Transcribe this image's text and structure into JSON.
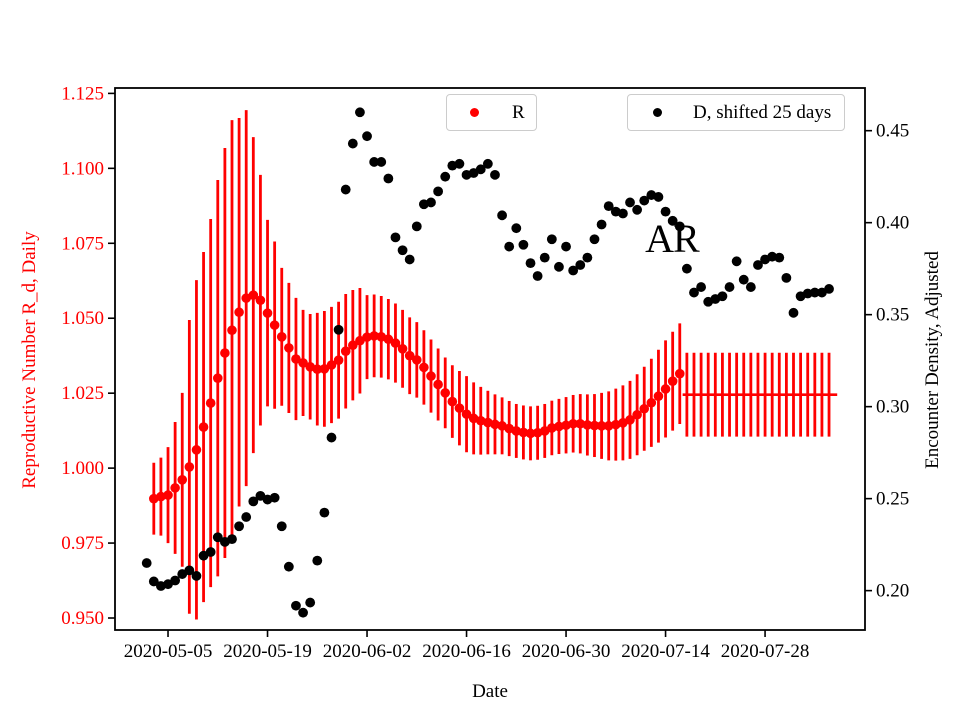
{
  "chart_data": {
    "type": "scatter",
    "xlabel": "Date",
    "ylabel_left": "Reproductive Number R_d, Daily",
    "ylabel_right": "Encounter Density, Adjusted",
    "axes": {
      "x_tick_labels": [
        "2020-05-05",
        "2020-05-19",
        "2020-06-02",
        "2020-06-16",
        "2020-06-30",
        "2020-07-14",
        "2020-07-28"
      ],
      "x_tick_offsets": [
        0,
        14,
        28,
        42,
        56,
        70,
        84
      ],
      "x_range_offsets": [
        -7.46,
        98.06
      ],
      "left_tick_labels": [
        "0.950",
        "0.975",
        "1.000",
        "1.025",
        "1.050",
        "1.075",
        "1.100",
        "1.125"
      ],
      "left_tick_values": [
        0.95,
        0.975,
        1.0,
        1.025,
        1.05,
        1.075,
        1.1,
        1.125
      ],
      "left_range": [
        0.946,
        1.1268
      ],
      "left_color": "#ff0000",
      "right_tick_labels": [
        "0.20",
        "0.25",
        "0.30",
        "0.35",
        "0.40",
        "0.45"
      ],
      "right_tick_values": [
        0.2,
        0.25,
        0.3,
        0.35,
        0.4,
        0.45
      ],
      "right_range": [
        0.1786,
        0.4732
      ],
      "right_color": "#000000",
      "grid": false
    },
    "series": [
      {
        "name": "R",
        "type": "scatter-errorbar",
        "axis": "left",
        "color": "#ff0000",
        "start_offset": -2,
        "values": [
          0.9898,
          0.9905,
          0.991,
          0.9934,
          0.9961,
          1.0004,
          1.0061,
          1.0137,
          1.0217,
          1.03,
          1.0384,
          1.046,
          1.052,
          1.0567,
          1.0577,
          1.056,
          1.0517,
          1.0477,
          1.0438,
          1.0401,
          1.0364,
          1.0351,
          1.0338,
          1.033,
          1.0331,
          1.0344,
          1.036,
          1.039,
          1.041,
          1.0425,
          1.0437,
          1.0441,
          1.0438,
          1.043,
          1.0417,
          1.0398,
          1.0375,
          1.0361,
          1.0336,
          1.0307,
          1.0279,
          1.0251,
          1.0222,
          1.02,
          1.018,
          1.0166,
          1.0158,
          1.0152,
          1.0146,
          1.0141,
          1.0132,
          1.0124,
          1.0119,
          1.0116,
          1.0118,
          1.0124,
          1.0134,
          1.0139,
          1.0143,
          1.0148,
          1.0148,
          1.0144,
          1.0142,
          1.0141,
          1.0141,
          1.0145,
          1.0151,
          1.0161,
          1.0178,
          1.0198,
          1.0218,
          1.024,
          1.0264,
          1.029,
          1.0315
        ],
        "err": [
          0.012,
          0.013,
          0.016,
          0.022,
          0.029,
          0.049,
          0.0566,
          0.0584,
          0.0614,
          0.0661,
          0.0684,
          0.0701,
          0.0648,
          0.0627,
          0.0527,
          0.0418,
          0.0311,
          0.0279,
          0.023,
          0.0217,
          0.0204,
          0.0177,
          0.0176,
          0.0188,
          0.0193,
          0.0194,
          0.0195,
          0.0191,
          0.0184,
          0.0176,
          0.014,
          0.0138,
          0.0136,
          0.0134,
          0.0132,
          0.013,
          0.0128,
          0.0126,
          0.0124,
          0.0122,
          0.012,
          0.0118,
          0.0121,
          0.0124,
          0.0127,
          0.012,
          0.0113,
          0.0106,
          0.01,
          0.0095,
          0.0092,
          0.009,
          0.009,
          0.009,
          0.009,
          0.009,
          0.0091,
          0.0092,
          0.0094,
          0.0096,
          0.0099,
          0.0102,
          0.0105,
          0.011,
          0.0115,
          0.012,
          0.0125,
          0.013,
          0.0135,
          0.014,
          0.0147,
          0.0155,
          0.0162,
          0.0165,
          0.0168
        ]
      },
      {
        "name": "R flat segment",
        "type": "line-errorbar",
        "axis": "left",
        "color": "#ff0000",
        "line_start_offset": 72.4,
        "line_end_offset": 94.15,
        "value": 1.0245,
        "bar_start_offset": 73,
        "bar_count": 21,
        "err": 0.014
      },
      {
        "name": "D, shifted 25 days",
        "type": "scatter",
        "axis": "right",
        "color": "#000000",
        "start_offset": -3,
        "values": [
          0.215,
          0.205,
          0.2025,
          0.2035,
          0.2055,
          0.209,
          0.211,
          0.208,
          0.219,
          0.221,
          0.229,
          0.2265,
          0.228,
          0.235,
          0.24,
          0.2485,
          0.2515,
          0.2495,
          0.2505,
          0.235,
          0.213,
          0.1918,
          0.188,
          0.1935,
          0.2163,
          0.2424,
          0.2832,
          0.3418,
          0.418,
          0.443,
          0.46,
          0.447,
          0.433,
          0.433,
          0.424,
          0.392,
          0.385,
          0.38,
          0.398,
          0.41,
          0.411,
          0.417,
          0.425,
          0.431,
          0.432,
          0.426,
          0.427,
          0.429,
          0.432,
          0.426,
          0.404,
          0.387,
          0.397,
          0.388,
          0.378,
          0.371,
          0.381,
          0.391,
          0.376,
          0.387,
          0.374,
          0.377,
          0.381,
          0.391,
          0.399,
          0.409,
          0.406,
          0.405,
          0.411,
          0.407,
          0.412,
          0.415,
          0.414,
          0.406,
          0.401,
          0.398,
          0.375,
          0.362,
          0.365,
          0.357,
          0.3585,
          0.36,
          0.365,
          0.379,
          0.369,
          0.365,
          0.377,
          0.38,
          0.3815,
          0.381,
          0.37,
          0.351,
          0.36,
          0.3615,
          0.362,
          0.362,
          0.364
        ]
      }
    ],
    "annotation": {
      "text": "AR",
      "x_offset": 71.2,
      "value_left": 1.077
    }
  },
  "legend": [
    {
      "label": "R",
      "color": "#ff0000"
    },
    {
      "label": "D, shifted 25 days",
      "color": "#000000"
    }
  ]
}
